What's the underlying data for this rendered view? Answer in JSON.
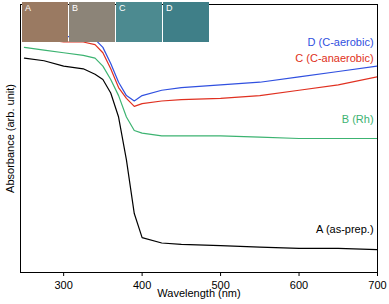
{
  "chart_data": {
    "type": "line",
    "xlabel": "Wavelength (nm)",
    "ylabel": "Absorbance (arb. unit)",
    "x": [
      250,
      275,
      300,
      325,
      340,
      350,
      360,
      370,
      380,
      390,
      400,
      425,
      450,
      500,
      550,
      600,
      650,
      700
    ],
    "series": [
      {
        "name": "A (as-prep.)",
        "color": "#000000",
        "values": [
          0.8,
          0.79,
          0.77,
          0.76,
          0.74,
          0.72,
          0.67,
          0.58,
          0.42,
          0.22,
          0.13,
          0.11,
          0.105,
          0.1,
          0.095,
          0.09,
          0.09,
          0.085
        ]
      },
      {
        "name": "B (Rh)",
        "color": "#3cb371",
        "values": [
          0.84,
          0.83,
          0.82,
          0.81,
          0.8,
          0.77,
          0.72,
          0.66,
          0.58,
          0.53,
          0.52,
          0.51,
          0.51,
          0.51,
          0.505,
          0.5,
          0.5,
          0.5
        ]
      },
      {
        "name": "C (C-anaerobic)",
        "color": "#e03020",
        "values": [
          0.88,
          0.87,
          0.86,
          0.86,
          0.85,
          0.82,
          0.76,
          0.69,
          0.65,
          0.62,
          0.63,
          0.64,
          0.645,
          0.65,
          0.66,
          0.68,
          0.7,
          0.73
        ]
      },
      {
        "name": "D (C-aerobic)",
        "color": "#3050e0",
        "values": [
          0.89,
          0.89,
          0.88,
          0.88,
          0.87,
          0.84,
          0.78,
          0.71,
          0.66,
          0.64,
          0.66,
          0.68,
          0.69,
          0.7,
          0.71,
          0.73,
          0.75,
          0.77
        ]
      }
    ],
    "annotations": [
      {
        "text": "D (C-aerobic)",
        "x": 695,
        "y": 0.86,
        "color": "#3050e0"
      },
      {
        "text": "C (C-anaerobic)",
        "x": 695,
        "y": 0.8,
        "color": "#e03020"
      },
      {
        "text": "B (Rh)",
        "x": 695,
        "y": 0.57,
        "color": "#3cb371"
      },
      {
        "text": "A (as-prep.)",
        "x": 695,
        "y": 0.16,
        "color": "#000000"
      }
    ],
    "inset_panels": [
      "A",
      "B",
      "C",
      "D"
    ],
    "xlim": [
      245,
      700
    ],
    "ylim": [
      0,
      1
    ],
    "xticks": [
      300,
      400,
      500,
      600,
      700
    ],
    "yticks": [],
    "tick_labels": "x",
    "grid": false
  }
}
